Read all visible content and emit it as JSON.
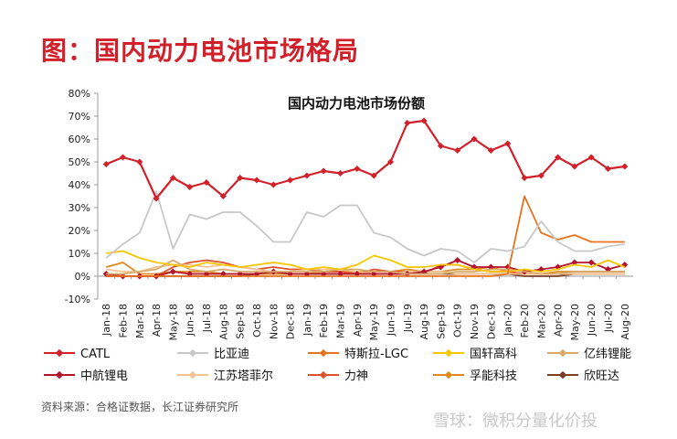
{
  "page": {
    "title": "图：国内动力电池市场格局",
    "source": "资料来源：合格证数据，长江证券研究所",
    "watermark": "雪球：微积分量化价投"
  },
  "colors": {
    "title_red": "#d2202a"
  },
  "chart_data": {
    "type": "line",
    "title": "国内动力电池市场份额",
    "xlabel": "",
    "ylabel": "",
    "ylim": [
      -10,
      80
    ],
    "yticks": [
      "-10%",
      "0%",
      "10%",
      "20%",
      "30%",
      "40%",
      "50%",
      "60%",
      "70%",
      "80%"
    ],
    "grid": false,
    "legend_position": "bottom",
    "x": [
      "Jan-18",
      "Feb-18",
      "Mar-18",
      "Apr-18",
      "May-18",
      "Jun-18",
      "Jul-18",
      "Aug-18",
      "Sep-18",
      "Oct-18",
      "Nov-18",
      "Dec-18",
      "Jan-19",
      "Feb-19",
      "Mar-19",
      "Apr-19",
      "May-19",
      "Jun-19",
      "Jul-19",
      "Aug-19",
      "Sep-19",
      "Oct-19",
      "Nov-19",
      "Dec-19",
      "Jan-20",
      "Feb-20",
      "Mar-20",
      "Apr-20",
      "May-20",
      "Jun-20",
      "Jul-20",
      "Aug-20"
    ],
    "x_tick_labels": [
      "Jan-18",
      "Feb-18",
      "Mar-18",
      "Apr-18",
      "May-18",
      "Jun-18",
      "Jul-18",
      "Aug-18",
      "Sep-18",
      "Oct-18",
      "Nov-18",
      "Dec-18",
      "Jan-19",
      "Feb-19",
      "Mar-19",
      "Apr-19",
      "May-19",
      "Jun-19",
      "Jul-19",
      "Aug-19",
      "Sep-19",
      "Oct-19",
      "Nov-19",
      "Dec-19",
      "Jan-20",
      "Feb-20",
      "Mar-20",
      "Apr-20",
      "May-20",
      "Jun-20",
      "Jul-20",
      "Aug-20"
    ],
    "series": [
      {
        "name": "CATL",
        "color": "#d2202a",
        "marker": true,
        "values": [
          49,
          52,
          50,
          34,
          43,
          39,
          41,
          35,
          43,
          42,
          40,
          42,
          44,
          46,
          45,
          47,
          44,
          50,
          67,
          68,
          57,
          55,
          60,
          55,
          58,
          43,
          44,
          52,
          48,
          52,
          47,
          48
        ]
      },
      {
        "name": "比亚迪",
        "color": "#c8c8c8",
        "marker": false,
        "values": [
          8,
          14,
          19,
          37,
          12,
          27,
          25,
          28,
          28,
          22,
          15,
          15,
          28,
          26,
          31,
          31,
          19,
          17,
          12,
          9,
          12,
          11,
          6,
          12,
          11,
          13,
          24,
          15,
          11,
          11,
          13,
          14
        ]
      },
      {
        "name": "特斯拉-LGC",
        "color": "#e8731e",
        "marker": false,
        "values": [
          0,
          0,
          0,
          0,
          0,
          0,
          0,
          0,
          0,
          0,
          0,
          0,
          0,
          0,
          0,
          0,
          0,
          0,
          0,
          0,
          0,
          0,
          0,
          0,
          1,
          35,
          19,
          16,
          18,
          15,
          15,
          15
        ]
      },
      {
        "name": "国轩高科",
        "color": "#f7c600",
        "marker": false,
        "values": [
          10,
          11,
          8,
          6,
          5,
          4,
          6,
          5,
          4,
          5,
          6,
          5,
          3,
          4,
          3,
          5,
          9,
          7,
          4,
          4,
          5,
          5,
          3,
          2,
          2,
          3,
          2,
          3,
          5,
          4,
          7,
          4
        ]
      },
      {
        "name": "亿纬锂能",
        "color": "#d7a96a",
        "marker": false,
        "values": [
          1,
          1,
          2,
          3,
          7,
          3,
          2,
          3,
          2,
          2,
          2,
          2,
          2,
          2,
          3,
          3,
          2,
          2,
          1,
          1,
          1,
          2,
          2,
          3,
          3,
          2,
          1,
          1,
          2,
          2,
          2,
          2
        ]
      },
      {
        "name": "中航锂电",
        "color": "#b5122b",
        "marker": true,
        "values": [
          1,
          0,
          0,
          0,
          2,
          1,
          1,
          1,
          1,
          1,
          2,
          1,
          1,
          1,
          1,
          1,
          1,
          1,
          1,
          2,
          4,
          7,
          4,
          4,
          4,
          2,
          3,
          4,
          6,
          6,
          3,
          5
        ]
      },
      {
        "name": "江苏塔菲尔",
        "color": "#f6c38f",
        "marker": false,
        "values": [
          3,
          2,
          2,
          4,
          5,
          5,
          4,
          5,
          4,
          3,
          2,
          2,
          3,
          3,
          3,
          2,
          1,
          1,
          2,
          2,
          2,
          1,
          1,
          1,
          1,
          1,
          1,
          1,
          1,
          1,
          1,
          1
        ]
      },
      {
        "name": "力神",
        "color": "#e0522b",
        "marker": false,
        "values": [
          0,
          0,
          0,
          0,
          4,
          6,
          7,
          6,
          4,
          3,
          4,
          3,
          3,
          2,
          2,
          1,
          3,
          2,
          2,
          1,
          5,
          5,
          3,
          2,
          2,
          1,
          1,
          1,
          1,
          1,
          1,
          1
        ]
      },
      {
        "name": "孚能科技",
        "color": "#e08a1e",
        "marker": false,
        "values": [
          4,
          6,
          1,
          1,
          2,
          2,
          2,
          1,
          1,
          1,
          1,
          1,
          1,
          2,
          2,
          2,
          2,
          2,
          3,
          2,
          2,
          3,
          3,
          4,
          2,
          1,
          1,
          2,
          2,
          2,
          2,
          2
        ]
      },
      {
        "name": "欣旺达",
        "color": "#7a3d28",
        "marker": false,
        "values": [
          0,
          0,
          0,
          0,
          0,
          0,
          0,
          0,
          0,
          1,
          1,
          1,
          1,
          1,
          1,
          1,
          1,
          1,
          1,
          1,
          1,
          1,
          1,
          1,
          1,
          0,
          0,
          0,
          1,
          1,
          1,
          1
        ]
      }
    ]
  }
}
